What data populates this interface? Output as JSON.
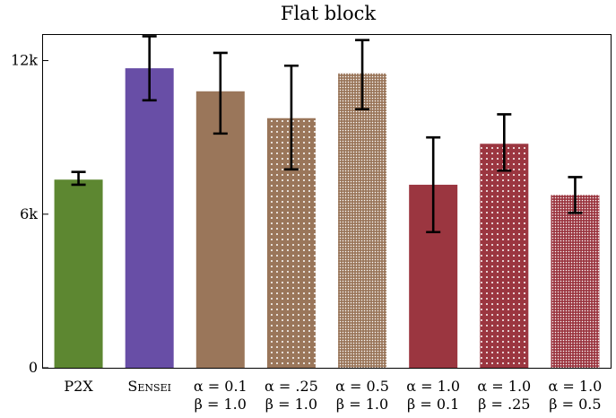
{
  "chart_data": {
    "type": "bar",
    "title": "Flat block",
    "xlabel": "",
    "ylabel": "",
    "ylim": [
      0,
      13000
    ],
    "yticks": [
      0,
      6000,
      12000
    ],
    "ytick_labels": [
      "0",
      "6k",
      "12k"
    ],
    "grid": false,
    "legend": "none",
    "categories": [
      {
        "line1": "P2X",
        "line2": ""
      },
      {
        "line1": "Sensei",
        "line2": ""
      },
      {
        "line1": "α = 0.1",
        "line2": "β = 1.0"
      },
      {
        "line1": "α = .25",
        "line2": "β = 1.0"
      },
      {
        "line1": "α = 0.5",
        "line2": "β = 1.0"
      },
      {
        "line1": "α = 1.0",
        "line2": "β = 0.1"
      },
      {
        "line1": "α = 1.0",
        "line2": "β = .25"
      },
      {
        "line1": "α = 1.0",
        "line2": "β = 0.5"
      }
    ],
    "values": [
      7350,
      11700,
      10800,
      9750,
      11500,
      7150,
      8750,
      6750
    ],
    "err_low": [
      7150,
      10450,
      9150,
      7750,
      10100,
      5300,
      7700,
      6050
    ],
    "err_high": [
      7650,
      12950,
      12300,
      11800,
      12800,
      9000,
      9900,
      7450
    ],
    "colors": [
      "#5d8731",
      "#684ea6",
      "#9a765a",
      "#9a765a",
      "#9a765a",
      "#9b3640",
      "#9b3640",
      "#9b3640"
    ],
    "patterns": [
      "solid",
      "solid",
      "solid",
      "dots-sparse",
      "dots-dense",
      "solid",
      "dots-sparse",
      "dots-dense"
    ]
  }
}
